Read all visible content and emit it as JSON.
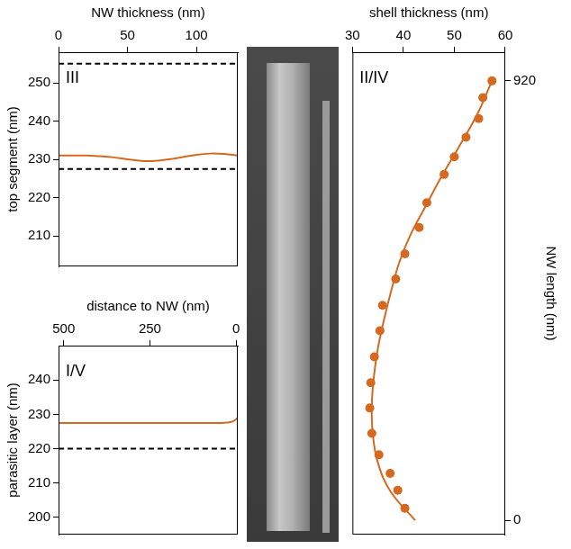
{
  "chart_data": [
    {
      "type": "line",
      "x_label": "NW thickness (nm)",
      "y_label": "top segment (nm)",
      "annotation": "III",
      "xlim": [
        0,
        130
      ],
      "xticks": [
        0,
        50,
        100
      ],
      "ylim": [
        202,
        258
      ],
      "yticks": [
        210,
        220,
        230,
        240,
        250
      ],
      "grid": false,
      "series": [
        {
          "type": "line",
          "line_style": "solid",
          "color": "#d4691f",
          "x": [
            0,
            10,
            20,
            30,
            40,
            50,
            60,
            70,
            80,
            90,
            100,
            110,
            120,
            130
          ],
          "values": [
            231,
            231,
            231,
            230.8,
            230.5,
            230,
            229.6,
            229.6,
            230,
            230.6,
            231.2,
            231.5,
            231.4,
            231
          ]
        },
        {
          "type": "line",
          "line_style": "dashed",
          "color": "#000000",
          "x": [
            0,
            130
          ],
          "values": [
            255,
            255
          ]
        },
        {
          "type": "line",
          "line_style": "dashed",
          "color": "#000000",
          "x": [
            0,
            130
          ],
          "values": [
            227.5,
            227.5
          ]
        }
      ]
    },
    {
      "type": "line",
      "x_label": "distance to NW (nm)",
      "y_label": "parasitic layer (nm)",
      "annotation": "I/V",
      "xlim": [
        515,
        -5
      ],
      "xticks": [
        500,
        250,
        0
      ],
      "ylim": [
        195,
        250
      ],
      "yticks": [
        200,
        210,
        220,
        230,
        240
      ],
      "grid": false,
      "series": [
        {
          "type": "line",
          "line_style": "solid",
          "color": "#d4691f",
          "x": [
            515,
            400,
            300,
            200,
            100,
            50,
            25,
            10,
            0,
            -5
          ],
          "values": [
            227.5,
            227.5,
            227.5,
            227.5,
            227.5,
            227.5,
            227.6,
            227.9,
            228.6,
            229
          ]
        },
        {
          "type": "line",
          "line_style": "dashed",
          "color": "#000000",
          "x": [
            515,
            -5
          ],
          "values": [
            220,
            220
          ]
        }
      ]
    },
    {
      "type": "scatter",
      "x_label": "shell thickness (nm)",
      "y_label": "NW length (nm)",
      "annotation": "II/IV",
      "xlim": [
        30,
        60
      ],
      "xticks": [
        30,
        40,
        50,
        60
      ],
      "ylim": [
        -30,
        980
      ],
      "yticks": [
        0,
        920
      ],
      "grid": false,
      "series": [
        {
          "type": "scatter",
          "marker": "circle",
          "color": "#d4691f",
          "x": [
            57.4,
            55.6,
            54.8,
            52.3,
            50.0,
            48.0,
            44.6,
            43.1,
            40.3,
            38.5,
            35.9,
            35.4,
            34.3,
            33.6,
            33.4,
            33.8,
            35.2,
            37.4,
            38.9,
            40.3
          ],
          "values": [
            920,
            885,
            841,
            802,
            761,
            724,
            665,
            613,
            558,
            505,
            450,
            397,
            342,
            288,
            235,
            182,
            137,
            98,
            63,
            25
          ]
        },
        {
          "type": "line",
          "line_style": "solid",
          "color": "#d4691f",
          "x": [
            57.4,
            54.5,
            50.8,
            47.5,
            44.5,
            41.5,
            39.2,
            37.6,
            36.2,
            35.0,
            34.2,
            33.8,
            34.0,
            35.0,
            37.5,
            42.3
          ],
          "values": [
            920,
            850,
            780,
            720,
            660,
            600,
            540,
            480,
            420,
            360,
            300,
            240,
            180,
            120,
            60,
            0
          ]
        }
      ]
    }
  ]
}
